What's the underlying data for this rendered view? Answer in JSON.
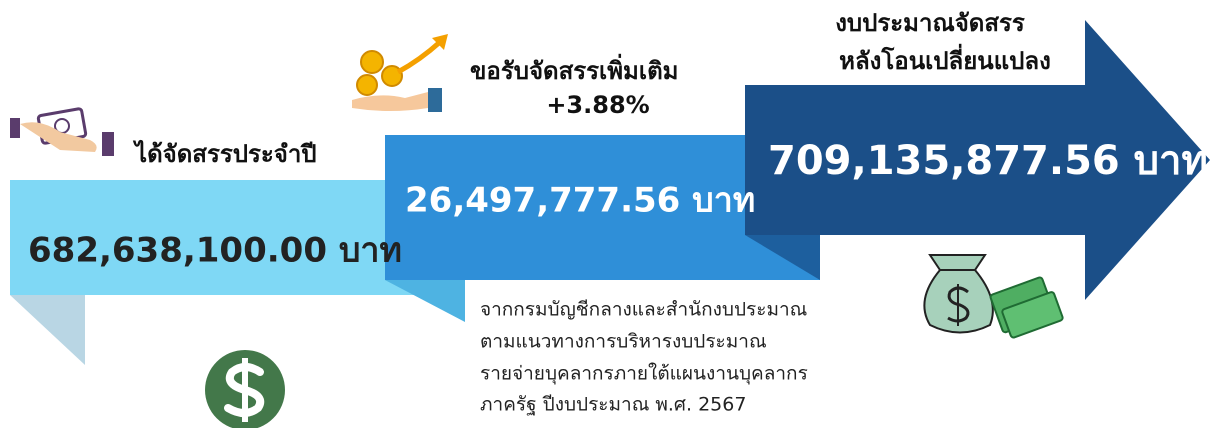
{
  "blocks": [
    {
      "label": [
        "ได้จัดสรรประจำปี"
      ],
      "amount": "682,638,100.00 บาท"
    },
    {
      "label": [
        "ขอรับจัดสรรเพิ่มเติม",
        "+3.88%"
      ],
      "amount": "26,497,777.56 บาท"
    },
    {
      "label": [
        "งบประมาณจัดสรร",
        "หลังโอนเปลี่ยนแปลง"
      ],
      "amount": "709,135,877.56 บาท"
    }
  ],
  "note": [
    "จากกรมบัญชีกลางและสำนักงบประมาณ",
    "ตามแนวทางการบริหารงบประมาณ",
    "รายจ่ายบุคลากรภายใต้แผนงานบุคลากร",
    "ภาครัฐ ปีงบประมาณ พ.ศ. 2567"
  ]
}
